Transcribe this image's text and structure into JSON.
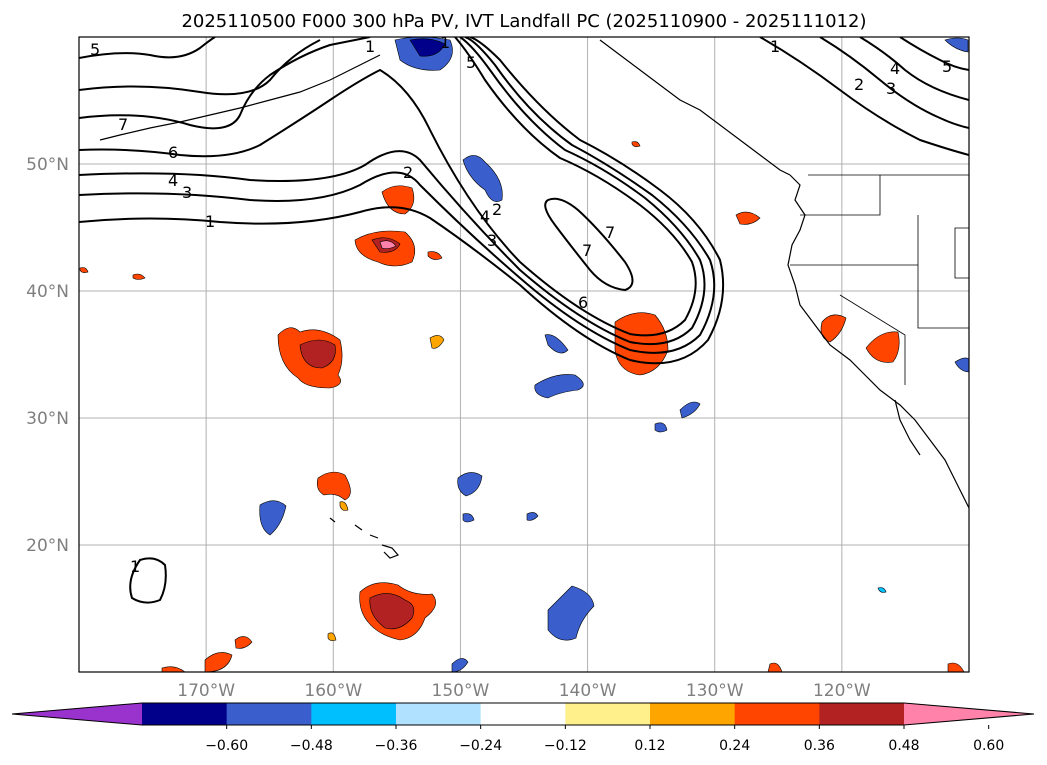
{
  "title": "2025110500 F000 300 hPa PV, IVT Landfall PC (2025110900 - 2025111012)",
  "map": {
    "lon_range": [
      -180,
      -110
    ],
    "lat_range": [
      10,
      60
    ],
    "lat_labels": [
      "50°N",
      "40°N",
      "30°N",
      "20°N"
    ],
    "lon_labels": [
      "170°W",
      "160°W",
      "150°W",
      "140°W",
      "130°W",
      "120°W"
    ],
    "contour_labels": [
      "5",
      "7",
      "6",
      "4",
      "3",
      "1",
      "2",
      "2",
      "4",
      "3",
      "7",
      "7",
      "6",
      "1",
      "2",
      "3",
      "4",
      "5",
      "1",
      "5",
      "1",
      "1"
    ]
  },
  "colorbar": {
    "ticks": [
      "−0.60",
      "−0.48",
      "−0.36",
      "−0.24",
      "−0.12",
      "0.12",
      "0.24",
      "0.36",
      "0.48",
      "0.60"
    ],
    "colors": [
      "#9a32cd",
      "#00008b",
      "#3a5fcd",
      "#00bfff",
      "#b0e2ff",
      "#ffffff",
      "#fff08c",
      "#ffa500",
      "#ff4500",
      "#b22222",
      "#ff82ab"
    ]
  }
}
